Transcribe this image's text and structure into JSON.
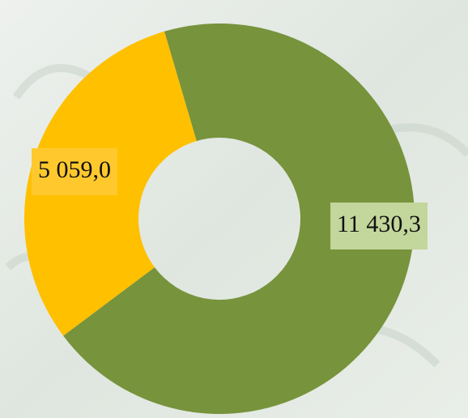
{
  "chart_data": {
    "type": "donut",
    "values": [
      11430.3,
      5059.0
    ],
    "value_labels": [
      "11 430,3",
      "5 059,0"
    ],
    "colors": [
      "#77933c",
      "#ffc000"
    ],
    "label_colors": [
      "#c3d69b",
      "#ffc92e"
    ]
  }
}
